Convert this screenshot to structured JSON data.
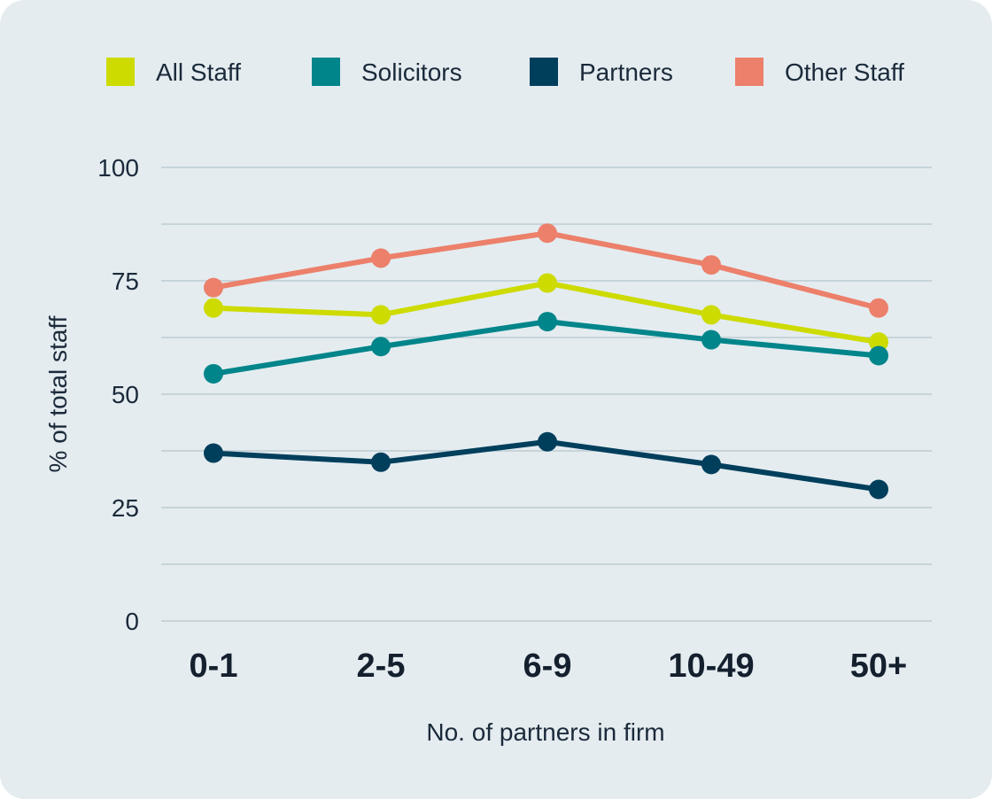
{
  "chart_data": {
    "type": "line",
    "categories": [
      "0-1",
      "2-5",
      "6-9",
      "10-49",
      "50+"
    ],
    "series": [
      {
        "name": "All Staff",
        "color": "#cddb00",
        "values": [
          69,
          67.5,
          74.5,
          67.5,
          61.5
        ]
      },
      {
        "name": "Solicitors",
        "color": "#00858a",
        "values": [
          54.5,
          60.5,
          66,
          62,
          58.5
        ]
      },
      {
        "name": "Partners",
        "color": "#003f5c",
        "values": [
          37,
          35,
          39.5,
          34.5,
          29
        ]
      },
      {
        "name": "Other Staff",
        "color": "#ec806a",
        "values": [
          73.5,
          80,
          85.5,
          78.5,
          69
        ]
      }
    ],
    "xlabel": "No. of partners in firm",
    "ylabel": "% of total staff",
    "ylim": [
      0,
      100
    ],
    "yticks": [
      0,
      25,
      50,
      75,
      100
    ],
    "grid": true,
    "legend_position": "top"
  }
}
